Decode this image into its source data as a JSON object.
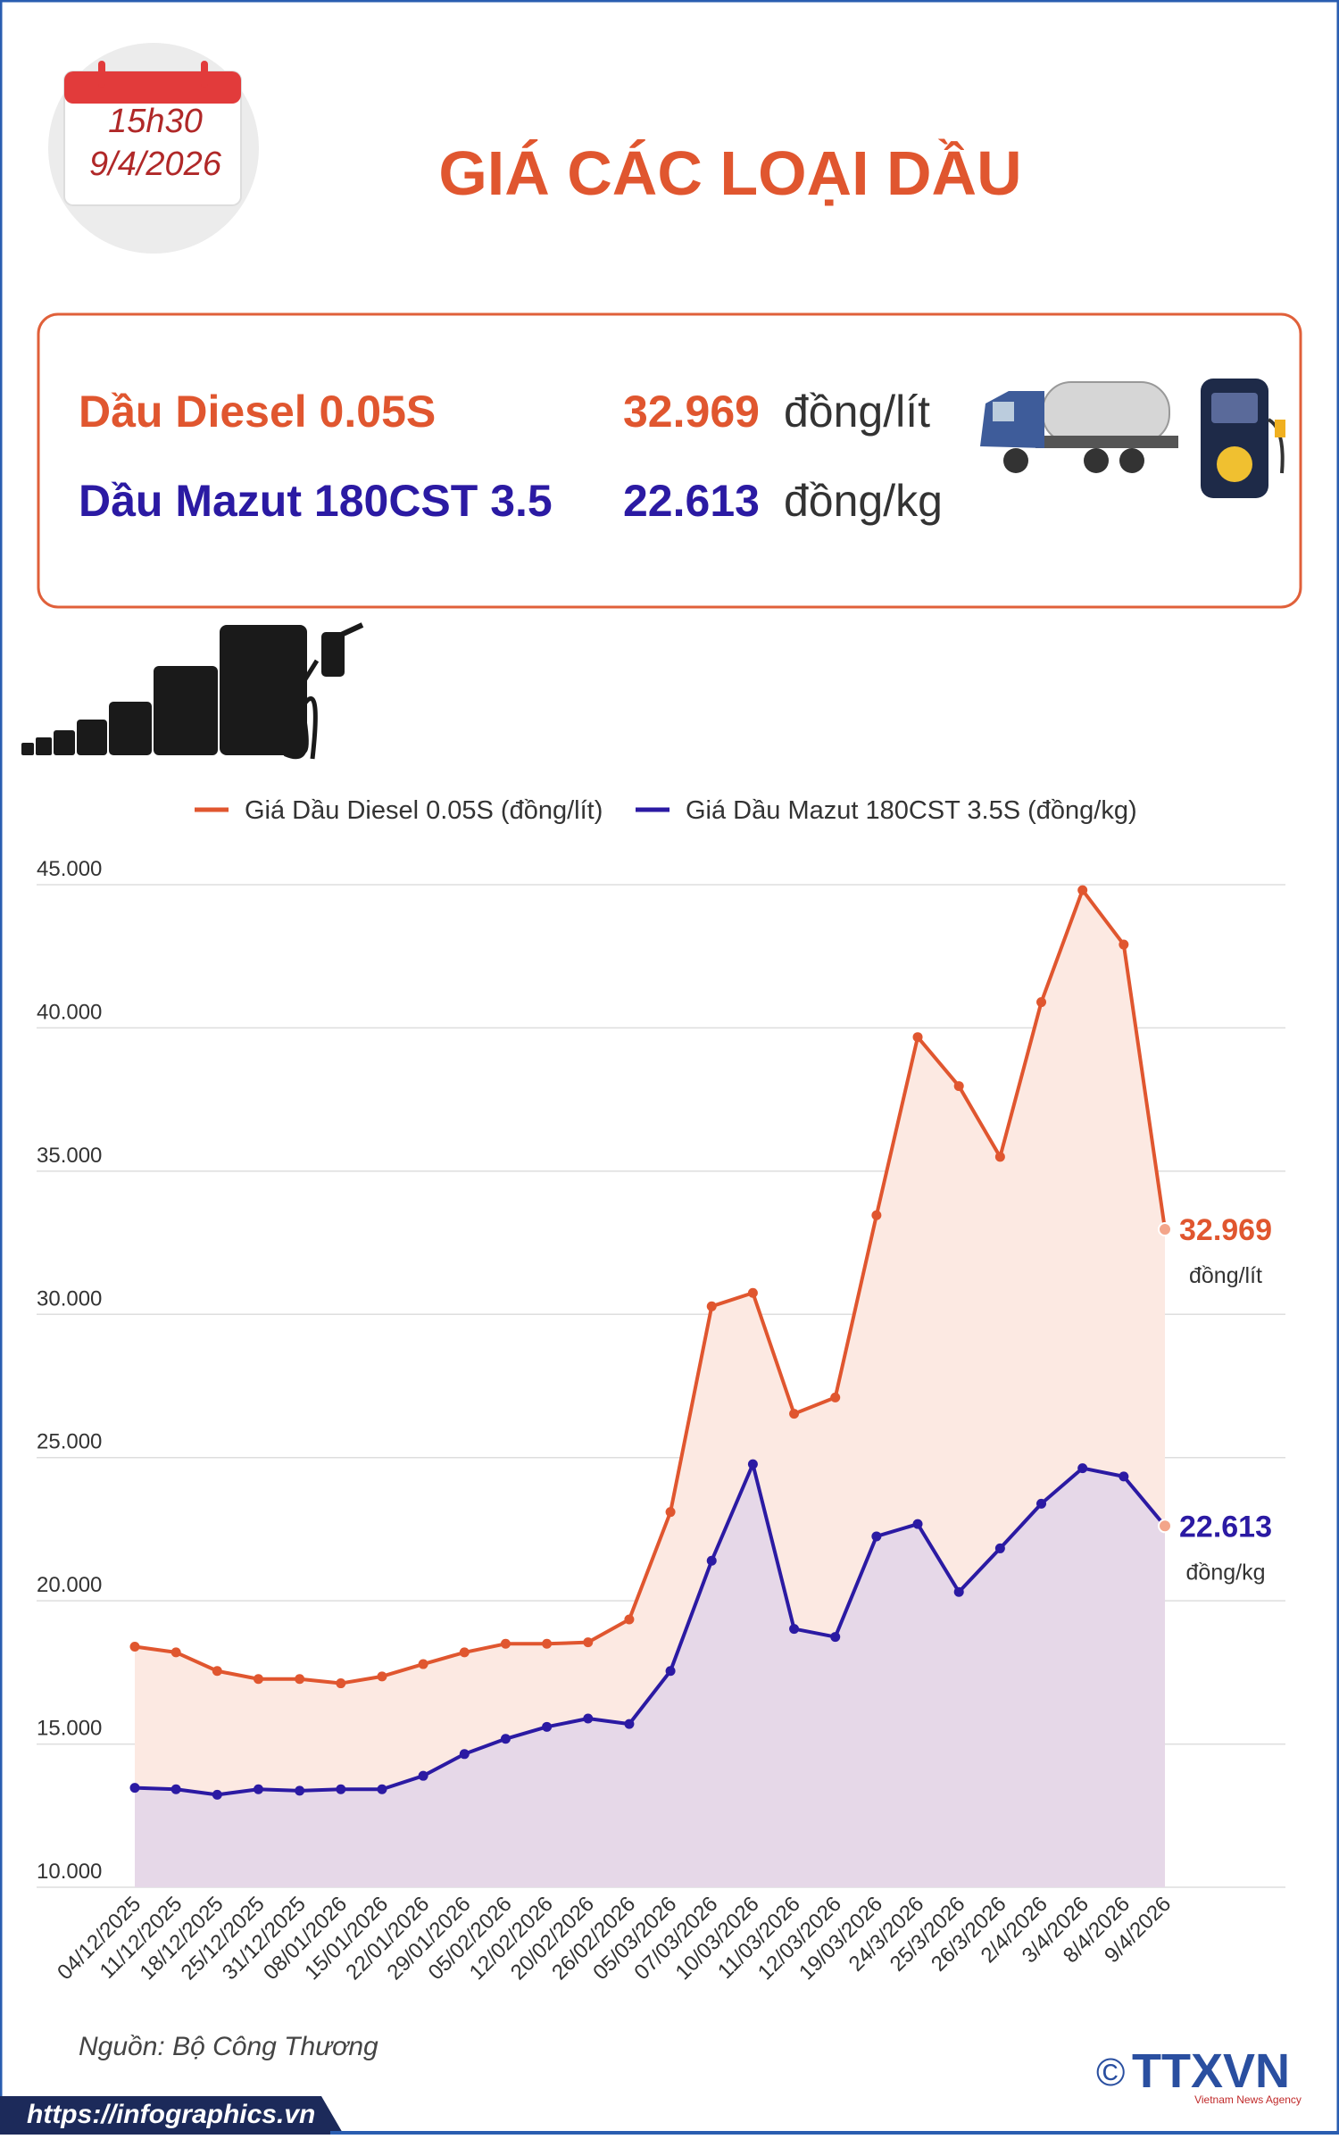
{
  "header": {
    "time": "15h30",
    "date": "9/4/2026",
    "title": "GIÁ CÁC LOẠI DẦU"
  },
  "info": {
    "rows": [
      {
        "name": "Dầu Diesel 0.05S",
        "price": "32.969",
        "unit": "đồng/lít"
      },
      {
        "name": "Dầu Mazut 180CST 3.5",
        "price": "22.613",
        "unit": "đồng/kg"
      }
    ]
  },
  "chart_data": {
    "type": "line",
    "categories": [
      "04/12/2025",
      "11/12/2025",
      "18/12/2025",
      "25/12/2025",
      "31/12/2025",
      "08/01/2026",
      "15/01/2026",
      "22/01/2026",
      "29/01/2026",
      "05/02/2026",
      "12/02/2026",
      "20/02/2026",
      "26/02/2026",
      "05/03/2026",
      "07/03/2026",
      "10/03/2026",
      "11/03/2026",
      "12/03/2026",
      "19/03/2026",
      "24/3/2026",
      "25/3/2026",
      "26/3/2026",
      "2/4/2026",
      "3/4/2026",
      "8/4/2026",
      "9/4/2026"
    ],
    "series": [
      {
        "name": "Giá Dầu Diesel 0.05S (đồng/lít)",
        "color": "#e0562f",
        "area_color": "#fce9e2",
        "values": [
          18400,
          18200,
          17550,
          17270,
          17270,
          17120,
          17360,
          17790,
          18200,
          18500,
          18500,
          18550,
          19350,
          23100,
          30280,
          30750,
          26530,
          27100,
          33460,
          39680,
          37970,
          35500,
          40900,
          44810,
          42910,
          32969
        ],
        "value_labels": [
          null,
          null,
          null,
          null,
          null,
          null,
          null,
          null,
          null,
          null,
          null,
          null,
          null,
          null,
          null,
          null,
          null,
          null,
          null,
          null,
          null,
          null,
          null,
          null,
          null,
          "32.969"
        ],
        "unit_label": "đồng/lít"
      },
      {
        "name": "Giá Dầu Mazut 180CST 3.5S (đồng/kg)",
        "color": "#2b1aa3",
        "area_color": "#e6d8e8",
        "values": [
          13470,
          13420,
          13230,
          13420,
          13370,
          13420,
          13420,
          13890,
          14650,
          15180,
          15600,
          15890,
          15700,
          17550,
          21400,
          24770,
          19020,
          18740,
          22250,
          22680,
          20310,
          21830,
          23390,
          24630,
          24340,
          22613
        ],
        "value_labels": [
          null,
          null,
          null,
          null,
          null,
          null,
          null,
          null,
          null,
          null,
          null,
          null,
          null,
          null,
          null,
          null,
          null,
          null,
          null,
          null,
          null,
          null,
          null,
          null,
          null,
          "22.613"
        ],
        "unit_label": "đồng/kg"
      }
    ],
    "ylim": [
      10000,
      45000
    ],
    "yticks": [
      {
        "value": 10000,
        "label": "10.000"
      },
      {
        "value": 15000,
        "label": "15.000"
      },
      {
        "value": 20000,
        "label": "20.000"
      },
      {
        "value": 25000,
        "label": "25.000"
      },
      {
        "value": 30000,
        "label": "30.000"
      },
      {
        "value": 35000,
        "label": "35.000"
      },
      {
        "value": 40000,
        "label": "40.000"
      },
      {
        "value": 45000,
        "label": "45.000"
      }
    ],
    "grid": true,
    "legend": "top"
  },
  "footer": {
    "source": "Nguồn: Bộ Công Thương",
    "url": "https://infographics.vn",
    "copyright": "©",
    "logo": "TTXVN",
    "agency": "Vietnam News Agency"
  }
}
